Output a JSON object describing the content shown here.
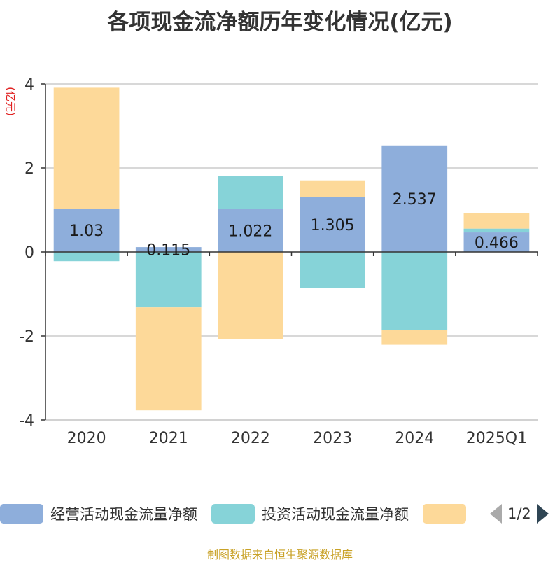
{
  "title": "各项现金流净额历年变化情况(亿元)",
  "unit_label": "(亿元)",
  "source": "制图数据来自恒生聚源数据库",
  "legend": {
    "items": [
      {
        "label": "经营活动现金流量净额",
        "color": "#8eaedb"
      },
      {
        "label": "投资活动现金流量净额",
        "color": "#86d3d8"
      },
      {
        "label": "",
        "color": "#fdd999"
      }
    ],
    "page": "1/2"
  },
  "chart_data": {
    "type": "bar",
    "stacked": true,
    "categories": [
      "2020",
      "2021",
      "2022",
      "2023",
      "2024",
      "2025Q1"
    ],
    "series": [
      {
        "name": "经营活动现金流量净额",
        "color": "#8eaedb",
        "values": [
          1.03,
          0.115,
          1.022,
          1.305,
          2.537,
          0.466
        ],
        "labels": [
          "1.03",
          "0.115",
          "1.022",
          "1.305",
          "2.537",
          "0.466"
        ]
      },
      {
        "name": "投资活动现金流量净额",
        "color": "#86d3d8",
        "values": [
          -0.22,
          -1.32,
          0.78,
          -0.85,
          -1.85,
          0.09
        ]
      },
      {
        "name": "",
        "color": "#fdd999",
        "values": [
          2.88,
          -2.45,
          -2.08,
          0.4,
          -0.36,
          0.37
        ]
      }
    ],
    "ylim": [
      -4,
      4
    ],
    "yticks": [
      -4,
      -2,
      0,
      2,
      4
    ],
    "grid": true,
    "legend_position": "bottom"
  }
}
